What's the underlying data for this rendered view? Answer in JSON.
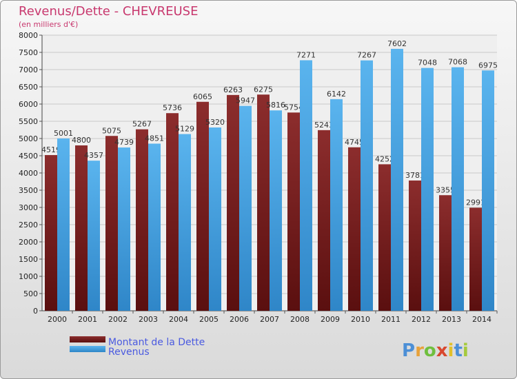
{
  "header": {
    "title": "Revenus/Dette - CHEVREUSE",
    "subtitle": "(en milliers d'€)"
  },
  "logo": {
    "text": "Proxiti"
  },
  "colors": {
    "debt": "#7a2222",
    "revenue": "#4da6e6"
  },
  "chart_data": {
    "type": "bar",
    "categories": [
      "2000",
      "2001",
      "2002",
      "2003",
      "2004",
      "2005",
      "2006",
      "2007",
      "2008",
      "2009",
      "2010",
      "2011",
      "2012",
      "2013",
      "2014"
    ],
    "series": [
      {
        "name": "Montant de la Dette",
        "values": [
          4519,
          4800,
          5075,
          5267,
          5736,
          6065,
          6263,
          6275,
          5754,
          5243,
          4745,
          4252,
          3781,
          3355,
          2991
        ]
      },
      {
        "name": "Revenus",
        "values": [
          5001,
          4357,
          4739,
          4851,
          5129,
          5320,
          5947,
          5816,
          7271,
          6142,
          7267,
          7602,
          7048,
          7068,
          6975
        ]
      }
    ],
    "ylim": [
      0,
      8000
    ],
    "yticks": [
      0,
      500,
      1000,
      1500,
      2000,
      2500,
      3000,
      3500,
      4000,
      4500,
      5000,
      5500,
      6000,
      6500,
      7000,
      7500,
      8000
    ],
    "grid": true,
    "legend": "bottom-left"
  }
}
